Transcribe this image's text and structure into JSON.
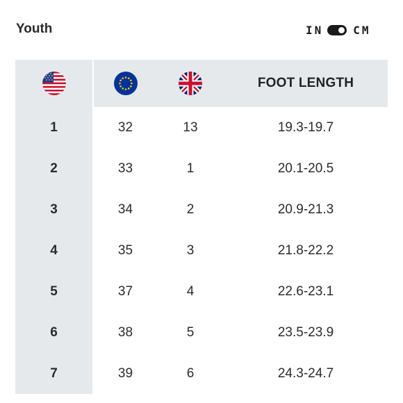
{
  "header": {
    "title": "Youth",
    "units": {
      "left_label": "IN",
      "right_label": "CM",
      "selected": "CM"
    }
  },
  "columns": {
    "us": {
      "icon": "us-flag-icon"
    },
    "eu": {
      "icon": "eu-flag-icon"
    },
    "uk": {
      "icon": "uk-flag-icon"
    },
    "length": {
      "label": "FOOT LENGTH"
    }
  },
  "rows": [
    {
      "us": "1",
      "eu": "32",
      "uk": "13",
      "length": "19.3-19.7"
    },
    {
      "us": "2",
      "eu": "33",
      "uk": "1",
      "length": "20.1-20.5"
    },
    {
      "us": "3",
      "eu": "34",
      "uk": "2",
      "length": "20.9-21.3"
    },
    {
      "us": "4",
      "eu": "35",
      "uk": "3",
      "length": "21.8-22.2"
    },
    {
      "us": "5",
      "eu": "37",
      "uk": "4",
      "length": "22.6-23.1"
    },
    {
      "us": "6",
      "eu": "38",
      "uk": "5",
      "length": "23.5-23.9"
    },
    {
      "us": "7",
      "eu": "39",
      "uk": "6",
      "length": "24.3-24.7"
    }
  ],
  "colors": {
    "header_bg": "#e6e9ec",
    "text": "#222222",
    "toggle": "#1a1a1a"
  }
}
